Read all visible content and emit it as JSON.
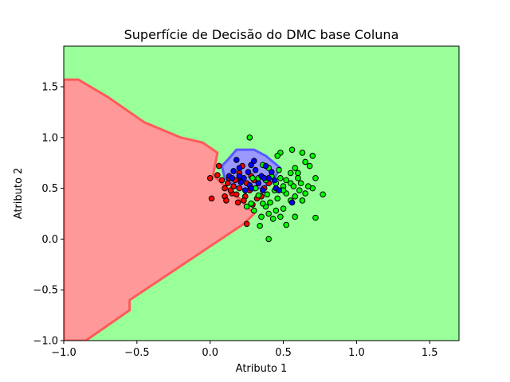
{
  "chart_data": {
    "type": "scatter",
    "title": "Superfície de Decisão do DMC base Coluna",
    "xlabel": "Atributo 1",
    "ylabel": "Atributo 2",
    "xlim": [
      -1.0,
      1.7
    ],
    "ylim": [
      -1.0,
      1.9
    ],
    "xticks": [
      -1.0,
      -0.5,
      0.0,
      0.5,
      1.0,
      1.5
    ],
    "yticks": [
      -1.0,
      -0.5,
      0.0,
      0.5,
      1.0,
      1.5
    ],
    "xtick_labels": [
      "−1.0",
      "−0.5",
      "0.0",
      "0.5",
      "1.0",
      "1.5"
    ],
    "ytick_labels": [
      "−1.0",
      "−0.5",
      "0.0",
      "0.5",
      "1.0",
      "1.5"
    ],
    "grid": false,
    "colors": {
      "region_red": "#ff9999",
      "region_green": "#99ff99",
      "region_blue": "#9999ff",
      "point_red": "#ff0000",
      "point_green": "#00ff00",
      "point_blue": "#0000ff",
      "edge": "#000000"
    },
    "decision_regions": {
      "red": [
        [
          -1.0,
          -1.0
        ],
        [
          -0.85,
          -1.0
        ],
        [
          -0.55,
          -0.7
        ],
        [
          -0.55,
          -0.6
        ],
        [
          0.23,
          0.15
        ],
        [
          0.3,
          0.25
        ],
        [
          0.2,
          0.4
        ],
        [
          0.08,
          0.55
        ],
        [
          0.02,
          0.63
        ],
        [
          0.05,
          0.85
        ],
        [
          -0.05,
          0.95
        ],
        [
          -0.2,
          1.0
        ],
        [
          -0.45,
          1.15
        ],
        [
          -0.7,
          1.4
        ],
        [
          -0.9,
          1.57
        ],
        [
          -1.0,
          1.57
        ]
      ],
      "blue": [
        [
          0.1,
          0.6
        ],
        [
          0.08,
          0.72
        ],
        [
          0.12,
          0.78
        ],
        [
          0.18,
          0.88
        ],
        [
          0.3,
          0.88
        ],
        [
          0.38,
          0.82
        ],
        [
          0.48,
          0.7
        ],
        [
          0.42,
          0.55
        ],
        [
          0.3,
          0.48
        ],
        [
          0.18,
          0.5
        ]
      ]
    },
    "series": [
      {
        "name": "",
        "color": "#ff0000",
        "points": [
          [
            0.1,
            0.5
          ],
          [
            0.12,
            0.55
          ],
          [
            0.06,
            0.72
          ],
          [
            0.15,
            0.45
          ],
          [
            0.1,
            0.42
          ],
          [
            0.2,
            0.5
          ],
          [
            0.0,
            0.6
          ],
          [
            0.17,
            0.58
          ],
          [
            0.13,
            0.6
          ],
          [
            0.19,
            0.36
          ],
          [
            0.24,
            0.42
          ],
          [
            0.27,
            0.48
          ],
          [
            0.2,
            0.65
          ],
          [
            0.22,
            0.72
          ],
          [
            0.14,
            0.48
          ],
          [
            0.08,
            0.58
          ],
          [
            0.25,
            0.55
          ],
          [
            0.3,
            0.58
          ],
          [
            0.35,
            0.42
          ],
          [
            0.37,
            0.5
          ],
          [
            0.4,
            0.55
          ],
          [
            0.32,
            0.4
          ],
          [
            0.29,
            0.34
          ],
          [
            0.25,
            0.15
          ],
          [
            0.01,
            0.4
          ],
          [
            0.05,
            0.63
          ],
          [
            0.11,
            0.38
          ],
          [
            0.18,
            0.44
          ],
          [
            0.23,
            0.38
          ],
          [
            0.16,
            0.52
          ],
          [
            0.28,
            0.62
          ],
          [
            0.21,
            0.58
          ]
        ]
      },
      {
        "name": "",
        "color": "#00ff00",
        "points": [
          [
            0.27,
            1.0
          ],
          [
            0.56,
            0.88
          ],
          [
            0.48,
            0.85
          ],
          [
            0.46,
            0.82
          ],
          [
            0.63,
            0.85
          ],
          [
            0.7,
            0.82
          ],
          [
            0.65,
            0.76
          ],
          [
            0.58,
            0.7
          ],
          [
            0.68,
            0.72
          ],
          [
            0.6,
            0.65
          ],
          [
            0.72,
            0.6
          ],
          [
            0.6,
            0.6
          ],
          [
            0.55,
            0.55
          ],
          [
            0.5,
            0.52
          ],
          [
            0.48,
            0.6
          ],
          [
            0.45,
            0.55
          ],
          [
            0.52,
            0.45
          ],
          [
            0.58,
            0.42
          ],
          [
            0.65,
            0.45
          ],
          [
            0.7,
            0.5
          ],
          [
            0.77,
            0.44
          ],
          [
            0.55,
            0.38
          ],
          [
            0.5,
            0.3
          ],
          [
            0.45,
            0.28
          ],
          [
            0.4,
            0.25
          ],
          [
            0.38,
            0.32
          ],
          [
            0.43,
            0.2
          ],
          [
            0.48,
            0.22
          ],
          [
            0.58,
            0.22
          ],
          [
            0.35,
            0.22
          ],
          [
            0.3,
            0.28
          ],
          [
            0.28,
            0.35
          ],
          [
            0.25,
            0.32
          ],
          [
            0.34,
            0.13
          ],
          [
            0.4,
            0.0
          ],
          [
            0.52,
            0.14
          ],
          [
            0.72,
            0.21
          ],
          [
            0.63,
            0.38
          ],
          [
            0.61,
            0.48
          ],
          [
            0.44,
            0.48
          ],
          [
            0.42,
            0.62
          ],
          [
            0.4,
            0.7
          ],
          [
            0.36,
            0.73
          ],
          [
            0.33,
            0.6
          ],
          [
            0.55,
            0.65
          ],
          [
            0.47,
            0.68
          ],
          [
            0.38,
            0.58
          ],
          [
            0.52,
            0.58
          ],
          [
            0.46,
            0.4
          ],
          [
            0.41,
            0.36
          ],
          [
            0.33,
            0.43
          ],
          [
            0.36,
            0.35
          ],
          [
            0.39,
            0.44
          ],
          [
            0.5,
            0.48
          ],
          [
            0.57,
            0.52
          ],
          [
            0.62,
            0.55
          ],
          [
            0.67,
            0.52
          ],
          [
            0.29,
            0.6
          ],
          [
            0.31,
            0.5
          ]
        ]
      },
      {
        "name": "",
        "color": "#0000ff",
        "points": [
          [
            0.13,
            0.62
          ],
          [
            0.16,
            0.67
          ],
          [
            0.2,
            0.7
          ],
          [
            0.23,
            0.6
          ],
          [
            0.26,
            0.66
          ],
          [
            0.28,
            0.73
          ],
          [
            0.31,
            0.68
          ],
          [
            0.35,
            0.62
          ],
          [
            0.38,
            0.72
          ],
          [
            0.42,
            0.66
          ],
          [
            0.33,
            0.55
          ],
          [
            0.27,
            0.53
          ],
          [
            0.21,
            0.56
          ],
          [
            0.18,
            0.78
          ],
          [
            0.4,
            0.6
          ],
          [
            0.45,
            0.5
          ],
          [
            0.28,
            0.5
          ],
          [
            0.36,
            0.48
          ],
          [
            0.47,
            0.48
          ],
          [
            0.56,
            0.36
          ],
          [
            0.24,
            0.48
          ],
          [
            0.37,
            0.6
          ],
          [
            0.3,
            0.77
          ],
          [
            0.2,
            0.62
          ],
          [
            0.44,
            0.58
          ],
          [
            0.15,
            0.6
          ]
        ]
      }
    ]
  }
}
